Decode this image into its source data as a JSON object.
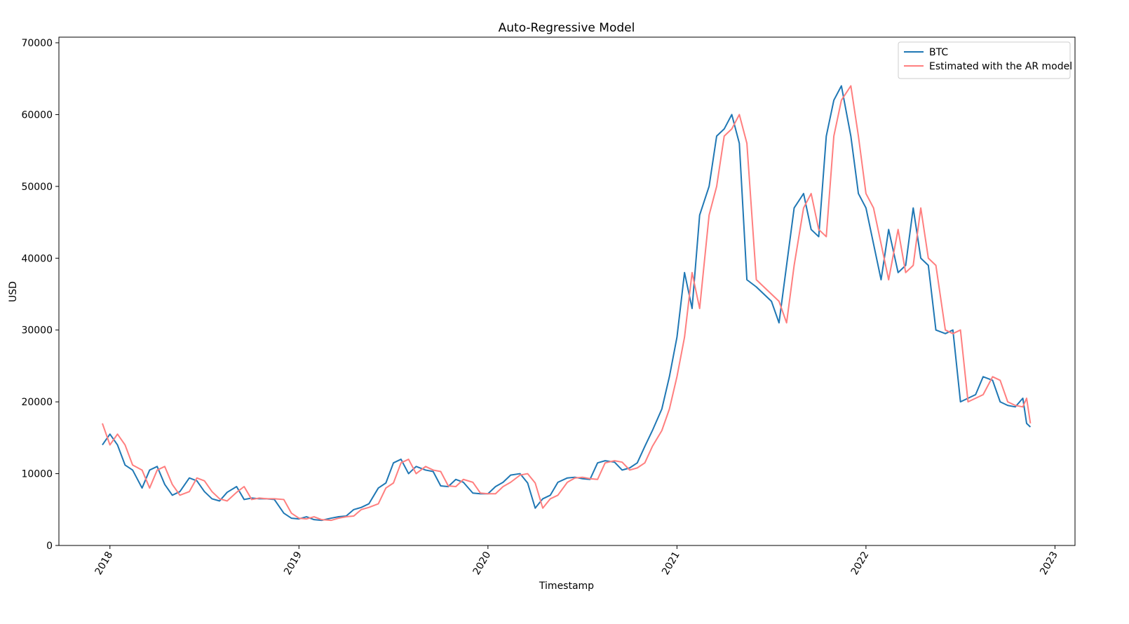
{
  "chart_data": {
    "type": "line",
    "title": "Auto-Regressive Model",
    "x_label": "Timestamp",
    "y_label": "USD",
    "x": [
      2017.96,
      2018.0,
      2018.04,
      2018.08,
      2018.12,
      2018.17,
      2018.21,
      2018.25,
      2018.29,
      2018.33,
      2018.37,
      2018.42,
      2018.46,
      2018.5,
      2018.54,
      2018.58,
      2018.62,
      2018.67,
      2018.71,
      2018.75,
      2018.79,
      2018.83,
      2018.87,
      2018.92,
      2018.96,
      2019.0,
      2019.04,
      2019.08,
      2019.12,
      2019.17,
      2019.21,
      2019.25,
      2019.29,
      2019.33,
      2019.37,
      2019.42,
      2019.46,
      2019.5,
      2019.54,
      2019.58,
      2019.62,
      2019.67,
      2019.71,
      2019.75,
      2019.79,
      2019.83,
      2019.87,
      2019.92,
      2019.96,
      2020.0,
      2020.04,
      2020.08,
      2020.12,
      2020.17,
      2020.21,
      2020.25,
      2020.29,
      2020.33,
      2020.37,
      2020.42,
      2020.46,
      2020.5,
      2020.54,
      2020.58,
      2020.62,
      2020.67,
      2020.71,
      2020.75,
      2020.79,
      2020.83,
      2020.87,
      2020.92,
      2020.96,
      2021.0,
      2021.04,
      2021.08,
      2021.12,
      2021.17,
      2021.21,
      2021.25,
      2021.29,
      2021.33,
      2021.37,
      2021.42,
      2021.46,
      2021.5,
      2021.54,
      2021.58,
      2021.62,
      2021.67,
      2021.71,
      2021.75,
      2021.79,
      2021.83,
      2021.87,
      2021.92,
      2021.96,
      2022.0,
      2022.04,
      2022.08,
      2022.12,
      2022.17,
      2022.21,
      2022.25,
      2022.29,
      2022.33,
      2022.37,
      2022.42,
      2022.46,
      2022.5,
      2022.54,
      2022.58,
      2022.62,
      2022.67,
      2022.71,
      2022.75,
      2022.79,
      2022.83,
      2022.85,
      2022.87
    ],
    "series": [
      {
        "name": "BTC",
        "color": "#1f77b4",
        "values": [
          14000,
          15500,
          14000,
          11200,
          10500,
          8000,
          10500,
          11000,
          8500,
          7000,
          7500,
          9400,
          9000,
          7500,
          6500,
          6200,
          7400,
          8200,
          6400,
          6600,
          6500,
          6500,
          6400,
          4500,
          3800,
          3700,
          4000,
          3600,
          3500,
          3800,
          4000,
          4100,
          5000,
          5300,
          5800,
          8000,
          8700,
          11500,
          12000,
          10000,
          11000,
          10500,
          10300,
          8300,
          8200,
          9200,
          8800,
          7300,
          7200,
          7200,
          8200,
          8800,
          9800,
          10000,
          8700,
          5200,
          6500,
          7000,
          8800,
          9400,
          9500,
          9300,
          9200,
          11500,
          11800,
          11600,
          10500,
          10800,
          11500,
          13800,
          16000,
          19000,
          23500,
          29000,
          38000,
          33000,
          46000,
          50000,
          57000,
          58000,
          60000,
          56000,
          37000,
          36000,
          35000,
          34000,
          31000,
          39000,
          47000,
          49000,
          44000,
          43000,
          57000,
          62000,
          64000,
          57000,
          49000,
          47000,
          42000,
          37000,
          44000,
          38000,
          39000,
          47000,
          40000,
          39000,
          30000,
          29500,
          30000,
          20000,
          20500,
          21000,
          23500,
          23000,
          20000,
          19500,
          19300,
          20500,
          17000,
          16500
        ]
      },
      {
        "name": "Estimated with the AR model",
        "color": "#ff7f7f",
        "values": [
          17000,
          14000,
          15500,
          14000,
          11200,
          10500,
          8000,
          10500,
          11000,
          8500,
          7000,
          7500,
          9400,
          9000,
          7500,
          6500,
          6200,
          7400,
          8200,
          6400,
          6600,
          6500,
          6500,
          6400,
          4500,
          3800,
          3700,
          4000,
          3600,
          3500,
          3800,
          4000,
          4100,
          5000,
          5300,
          5800,
          8000,
          8700,
          11500,
          12000,
          10000,
          11000,
          10500,
          10300,
          8300,
          8200,
          9200,
          8800,
          7300,
          7200,
          7200,
          8200,
          8800,
          9800,
          10000,
          8700,
          5200,
          6500,
          7000,
          8800,
          9400,
          9500,
          9300,
          9200,
          11500,
          11800,
          11600,
          10500,
          10800,
          11500,
          13800,
          16000,
          19000,
          23500,
          29000,
          38000,
          33000,
          46000,
          50000,
          57000,
          58000,
          60000,
          56000,
          37000,
          36000,
          35000,
          34000,
          31000,
          39000,
          47000,
          49000,
          44000,
          43000,
          57000,
          62000,
          64000,
          57000,
          49000,
          47000,
          42000,
          37000,
          44000,
          38000,
          39000,
          47000,
          40000,
          39000,
          30000,
          29500,
          30000,
          20000,
          20500,
          21000,
          23500,
          23000,
          20000,
          19500,
          19300,
          20500,
          17000
        ]
      }
    ],
    "xlim": [
      2017.73,
      2023.106
    ],
    "xticks": [
      2018,
      2019,
      2020,
      2021,
      2022,
      2023
    ],
    "ylim": [
      0,
      70780
    ],
    "yticks": [
      0,
      10000,
      20000,
      30000,
      40000,
      50000,
      60000,
      70000
    ],
    "legend": "upper right"
  }
}
